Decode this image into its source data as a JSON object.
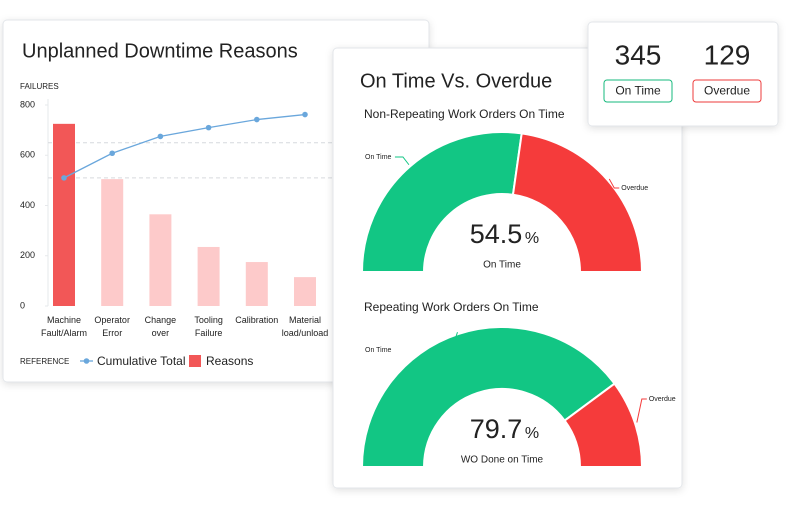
{
  "panel": {
    "title": "On Time Vs. Overdue"
  },
  "kpis": [
    {
      "value": 345,
      "label": "On Time",
      "color": "#16b97c"
    },
    {
      "value": 129,
      "label": "Overdue",
      "color": "#ee3b3b"
    }
  ],
  "chart_data": [
    {
      "type": "bar",
      "title": "Unplanned Downtime Reasons",
      "y_label": "FAILURES",
      "categories": [
        "Machine Fault/Alarm",
        "Operator Error",
        "Change over",
        "Tooling Failure",
        "Calibration",
        "Material load/unload"
      ],
      "series": [
        {
          "name": "Reasons",
          "color": "#f25757",
          "colors": [
            "#f25757",
            "#fdcaca",
            "#fdcaca",
            "#fdcaca",
            "#fdcaca",
            "#fdcaca"
          ],
          "values": [
            725,
            505,
            365,
            235,
            175,
            115
          ]
        },
        {
          "name": "Cumulative Total",
          "type": "line",
          "color": "#6aa7dc",
          "values": [
            510,
            608,
            675,
            710,
            742,
            762
          ]
        }
      ],
      "legend_title": "REFERENCE",
      "reference_lines": [
        650,
        510
      ],
      "ylim": [
        0,
        800
      ],
      "yticks": [
        0,
        200,
        400,
        600,
        800
      ]
    },
    {
      "type": "gauge",
      "title": "Non-Repeating Work Orders On Time",
      "categories": [
        "On Time",
        "Overdue"
      ],
      "values": [
        54.5,
        45.5
      ],
      "colors": [
        "#12c684",
        "#f53b3b"
      ],
      "unit": "%",
      "center_label": "On Time"
    },
    {
      "type": "gauge",
      "title": "Repeating Work Orders On Time",
      "categories": [
        "On Time",
        "Overdue"
      ],
      "values": [
        79.7,
        20.3
      ],
      "colors": [
        "#12c684",
        "#f53b3b"
      ],
      "unit": "%",
      "center_label": "WO Done on Time"
    }
  ]
}
